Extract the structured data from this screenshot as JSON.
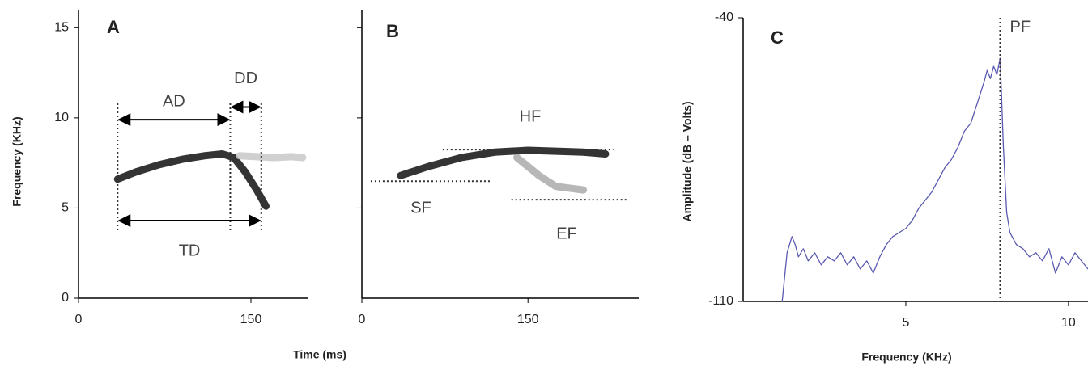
{
  "chart_data": [
    {
      "type": "spectrogram",
      "title": "A",
      "y_label": "Frequency (KHz)",
      "x_label": "Time (ms)",
      "xlim": [
        0,
        200
      ],
      "xticks": [
        0,
        150
      ],
      "ylim": [
        0,
        16
      ],
      "yticks": [
        0,
        5,
        10,
        15
      ],
      "series": [
        {
          "color": "#111111",
          "x": [
            34,
            50,
            70,
            90,
            110,
            125,
            135,
            145,
            155,
            163
          ],
          "values": [
            6.6,
            7.0,
            7.4,
            7.7,
            7.9,
            8.0,
            7.8,
            7.0,
            6.0,
            5.1
          ]
        },
        {
          "color": "#c8c8c8",
          "x": [
            140,
            170,
            185,
            195
          ],
          "values": [
            7.9,
            7.8,
            7.85,
            7.8
          ]
        }
      ],
      "markers": [
        34,
        132,
        159
      ],
      "intervals": [
        {
          "label": "AD",
          "x": [
            34,
            132
          ],
          "y": 9.9
        },
        {
          "label": "DD",
          "x": [
            132,
            159
          ],
          "y": 10.6
        },
        {
          "label": "TD",
          "x": [
            34,
            159
          ],
          "y": 4.3
        }
      ]
    },
    {
      "type": "spectrogram",
      "title": "B",
      "xlim": [
        0,
        250
      ],
      "xticks": [
        0,
        150
      ],
      "ylim": [
        0,
        16
      ],
      "yticks": [
        5,
        10,
        15
      ],
      "series": [
        {
          "color": "#111111",
          "x": [
            35,
            60,
            90,
            120,
            150,
            200,
            220
          ],
          "values": [
            6.8,
            7.3,
            7.8,
            8.1,
            8.2,
            8.1,
            8.0
          ]
        },
        {
          "color": "#aaaaaa",
          "x": [
            140,
            160,
            175,
            200
          ],
          "values": [
            7.8,
            6.8,
            6.2,
            6.0
          ]
        }
      ],
      "levels": [
        {
          "label": "HF",
          "x": [
            73,
            227
          ],
          "y": 8.24
        },
        {
          "label": "SF",
          "x": [
            8,
            116
          ],
          "y": 6.49
        },
        {
          "label": "EF",
          "x": [
            135,
            240
          ],
          "y": 5.46
        }
      ]
    },
    {
      "type": "line",
      "title": "C",
      "y_label": "Amplitude (dB – Volts)",
      "x_label": "Frequency (KHz)",
      "xlim": [
        0,
        10.6
      ],
      "xticks": [
        5,
        10
      ],
      "ylim": [
        -110,
        -40
      ],
      "yticks": [
        -110,
        -40
      ],
      "series": [
        {
          "color": "#5a5ab0",
          "x": [
            1.2,
            1.35,
            1.5,
            1.6,
            1.7,
            1.85,
            2.0,
            2.2,
            2.4,
            2.6,
            2.8,
            3.0,
            3.2,
            3.4,
            3.6,
            3.8,
            4.0,
            4.2,
            4.4,
            4.6,
            4.8,
            5.0,
            5.2,
            5.4,
            5.6,
            5.8,
            6.0,
            6.2,
            6.4,
            6.6,
            6.8,
            7.0,
            7.2,
            7.4,
            7.5,
            7.6,
            7.7,
            7.8,
            7.9,
            8.0,
            8.1,
            8.2,
            8.4,
            8.6,
            8.8,
            9.0,
            9.2,
            9.4,
            9.6,
            9.8,
            10.0,
            10.2,
            10.4,
            10.6
          ],
          "values": [
            -110,
            -98,
            -94,
            -96,
            -99,
            -97,
            -100,
            -98,
            -101,
            -99,
            -100,
            -98,
            -101,
            -99,
            -102,
            -100,
            -103,
            -99,
            -96,
            -94,
            -93,
            -92,
            -90,
            -87,
            -85,
            -83,
            -80,
            -77,
            -75,
            -72,
            -68,
            -66,
            -61,
            -56,
            -53,
            -55,
            -52,
            -54,
            -50,
            -72,
            -88,
            -93,
            -96,
            -97,
            -99,
            -98,
            -100,
            -97,
            -103,
            -99,
            -101,
            -98,
            -100,
            -102
          ]
        }
      ],
      "markers": [
        {
          "label": "PF",
          "x": 7.9
        }
      ]
    }
  ]
}
